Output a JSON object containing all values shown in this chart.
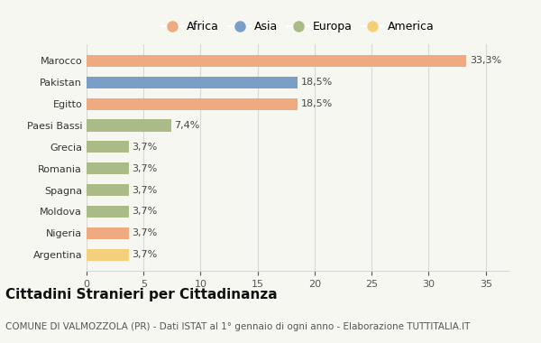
{
  "categories": [
    "Marocco",
    "Pakistan",
    "Egitto",
    "Paesi Bassi",
    "Grecia",
    "Romania",
    "Spagna",
    "Moldova",
    "Nigeria",
    "Argentina"
  ],
  "values": [
    33.3,
    18.5,
    18.5,
    7.4,
    3.7,
    3.7,
    3.7,
    3.7,
    3.7,
    3.7
  ],
  "labels": [
    "33,3%",
    "18,5%",
    "18,5%",
    "7,4%",
    "3,7%",
    "3,7%",
    "3,7%",
    "3,7%",
    "3,7%",
    "3,7%"
  ],
  "colors": [
    "#EEAA80",
    "#7B9EC7",
    "#EEAA80",
    "#AABB88",
    "#AABB88",
    "#AABB88",
    "#AABB88",
    "#AABB88",
    "#EEAA80",
    "#F5D07A"
  ],
  "legend_labels": [
    "Africa",
    "Asia",
    "Europa",
    "America"
  ],
  "legend_colors": [
    "#EEAA80",
    "#7B9EC7",
    "#AABB88",
    "#F5D07A"
  ],
  "title": "Cittadini Stranieri per Cittadinanza",
  "subtitle": "COMUNE DI VALMOZZOLA (PR) - Dati ISTAT al 1° gennaio di ogni anno - Elaborazione TUTTITALIA.IT",
  "xlim": [
    0,
    37
  ],
  "xticks": [
    0,
    5,
    10,
    15,
    20,
    25,
    30,
    35
  ],
  "background_color": "#f7f7f2",
  "grid_color": "#d8d8d8",
  "title_fontsize": 11,
  "subtitle_fontsize": 7.5,
  "label_fontsize": 8,
  "tick_fontsize": 8,
  "legend_fontsize": 9,
  "bar_height": 0.55
}
